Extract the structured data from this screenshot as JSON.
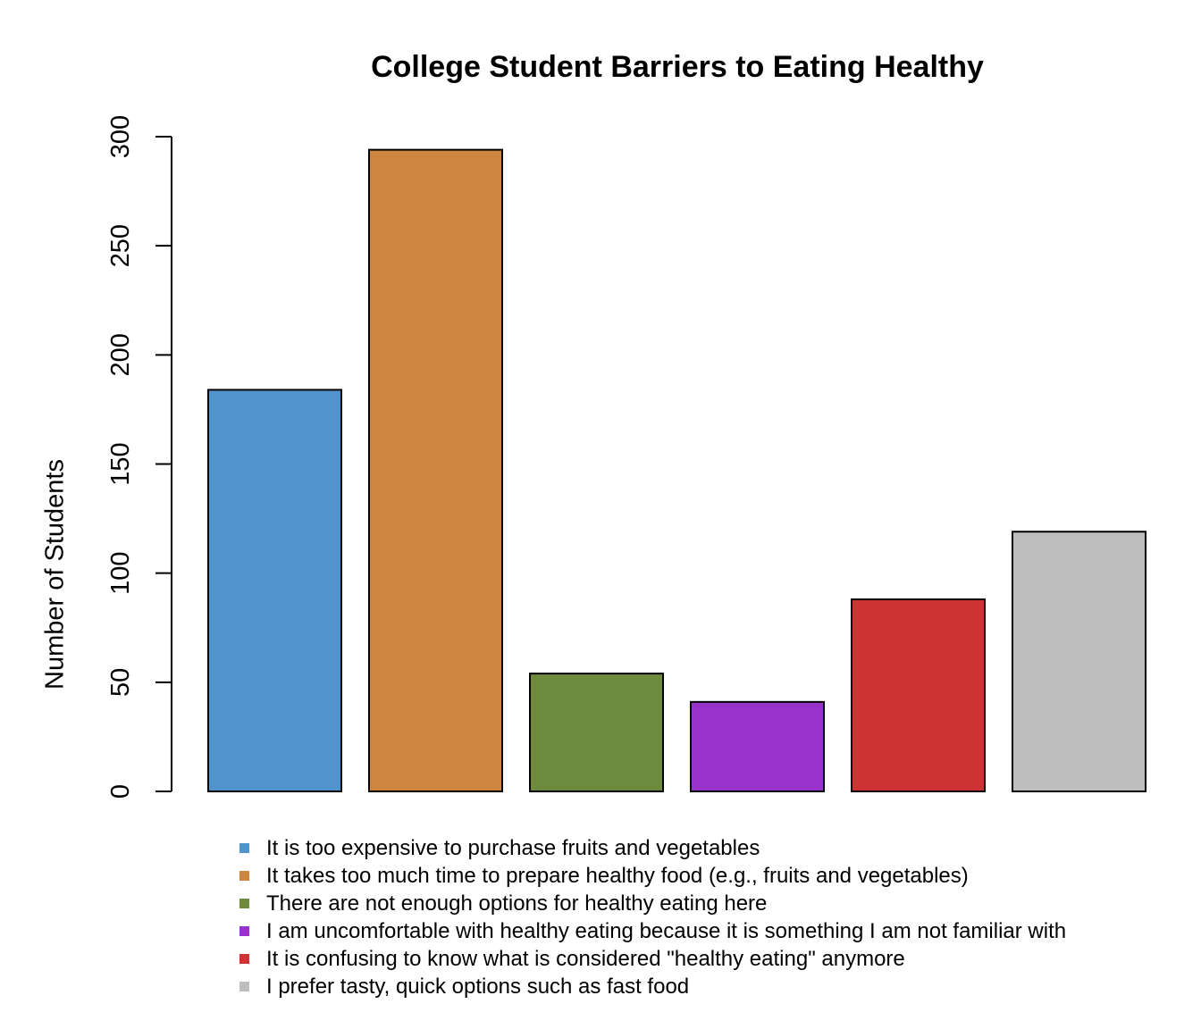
{
  "chart_data": {
    "type": "bar",
    "title": "College Student Barriers to Eating Healthy",
    "xlabel": "",
    "ylabel": "Number of Students",
    "ylim": [
      0,
      300
    ],
    "yticks": [
      0,
      50,
      100,
      150,
      200,
      250,
      300
    ],
    "grid": false,
    "legend_position": "bottom",
    "categories": [
      "It is too expensive to purchase fruits and vegetables",
      "It takes too much time to prepare healthy food (e.g., fruits and vegetables)",
      "There are not enough options for healthy eating here",
      "I am uncomfortable with healthy eating because it is something I am not familiar with",
      "It is confusing to know what is considered \"healthy eating\" anymore",
      "I prefer tasty, quick options such as fast food"
    ],
    "values": [
      184,
      294,
      54,
      41,
      88,
      119
    ],
    "colors": [
      "#4F94CD",
      "#CD853F",
      "#6E8B3D",
      "#9932CC",
      "#CD3333",
      "#BEBEBE"
    ]
  }
}
